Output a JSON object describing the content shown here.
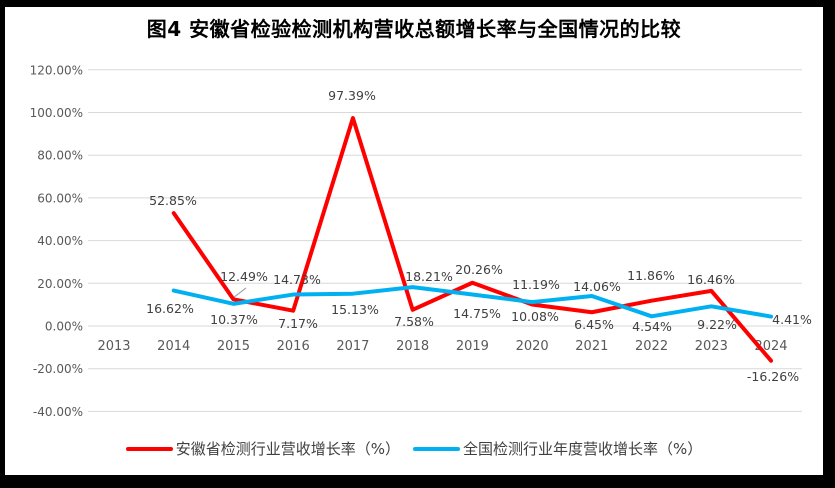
{
  "title": "图4 安徽省检验检测机构营收总额增长率与全国情况的比较",
  "chart_data": {
    "type": "line",
    "title": "图4 安徽省检验检测机构营收总额增长率与全国情况的比较",
    "categories": [
      "2013",
      "2014",
      "2015",
      "2016",
      "2017",
      "2018",
      "2019",
      "2020",
      "2021",
      "2022",
      "2023",
      "2024"
    ],
    "series": [
      {
        "name": "安徽省检测行业营收增长率（%）",
        "color": "#FF0000",
        "values": [
          null,
          52.85,
          12.49,
          7.17,
          97.39,
          7.58,
          20.26,
          10.08,
          6.45,
          11.86,
          16.46,
          -16.26
        ],
        "labels": [
          "",
          "52.85%",
          "12.49%",
          "7.17%",
          "97.39%",
          "7.58%",
          "20.26%",
          "10.08%",
          "6.45%",
          "11.86%",
          "16.46%",
          "-16.26%"
        ]
      },
      {
        "name": "全国检测行业年度营收增长率（%）",
        "color": "#00B0F0",
        "values": [
          null,
          16.62,
          10.37,
          14.73,
          15.13,
          18.21,
          14.75,
          11.19,
          14.06,
          4.54,
          9.22,
          4.41
        ],
        "labels": [
          "",
          "16.62%",
          "10.37%",
          "14.73%",
          "15.13%",
          "18.21%",
          "14.75%",
          "11.19%",
          "14.06%",
          "4.54%",
          "9.22%",
          "4.41%"
        ]
      }
    ],
    "y_ticks": [
      "120.00%",
      "100.00%",
      "80.00%",
      "60.00%",
      "40.00%",
      "20.00%",
      "0.00%",
      "-20.00%",
      "-40.00%"
    ],
    "y_tick_values": [
      120,
      100,
      80,
      60,
      40,
      20,
      0,
      -20,
      -40
    ],
    "ylim": [
      -40,
      120
    ],
    "xlabel": "",
    "ylabel": "",
    "grid": true,
    "data_labels": true,
    "legend_position": "bottom"
  },
  "colors": {
    "anhui_series": "#FF0000",
    "national_series": "#00B0F0",
    "gridline": "#D9D9D9",
    "axis_text": "#595959",
    "data_label_text": "#404040",
    "leader_line": "#A6A6A6",
    "frame": "#000000",
    "background": "#FFFFFF",
    "title_text": "#000000"
  }
}
